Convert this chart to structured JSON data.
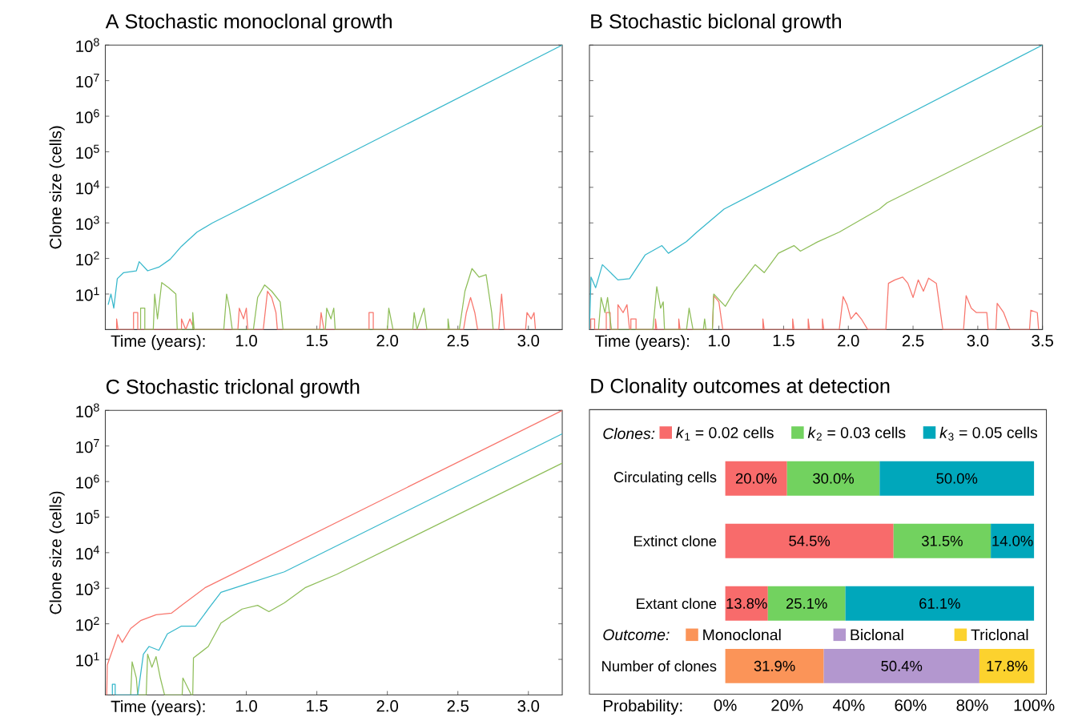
{
  "chart_data": [
    {
      "type": "line",
      "title": "A Stochastic monoclonal growth",
      "xlabel": "Time (years):",
      "ylabel": "Clone size (cells)",
      "log": "y",
      "xlim": [
        0,
        3.24
      ],
      "xticks": [
        {
          "value": 1,
          "label": "1.0"
        },
        {
          "value": 1.5,
          "label": "1.5"
        },
        {
          "value": 2,
          "label": "2.0"
        },
        {
          "value": 2.5,
          "label": "2.5"
        },
        {
          "value": 3,
          "label": "3.0"
        }
      ],
      "ylim": [
        1,
        100000000
      ],
      "yticks": [
        {
          "value": 10,
          "label": "10$^{1}$"
        },
        {
          "value": 100,
          "label": "10$^{2}$"
        },
        {
          "value": 1000,
          "label": "10$^{3}$"
        },
        {
          "value": 10000,
          "label": "10$^{4}$"
        },
        {
          "value": 100000,
          "label": "10$^{5}$"
        },
        {
          "value": 1000000,
          "label": "10$^{6}$"
        },
        {
          "value": 10000000,
          "label": "10$^{7}$"
        },
        {
          "value": 100000000,
          "label": "10$^{8}$"
        }
      ],
      "series": [
        {
          "color": "#f8766d",
          "x": [
            0.08,
            0.08,
            0.09,
            0.2,
            0.2,
            0.23,
            0.23,
            0.54,
            0.54,
            0.57,
            0.6,
            0.63,
            0.94,
            0.95,
            0.98,
            1.0,
            1.01,
            1.12,
            1.15,
            1.18,
            1.21,
            1.22,
            1.52,
            1.53,
            1.55,
            1.87,
            1.87,
            1.9,
            1.9,
            2.54,
            2.56,
            2.59,
            2.62,
            2.64,
            2.79,
            2.81,
            2.83,
            2.98,
            2.99,
            3.02,
            3.04,
            3.05
          ],
          "values": [
            1,
            2,
            1,
            1,
            3,
            3,
            1,
            1,
            2,
            1,
            2,
            1,
            1,
            4,
            2,
            4,
            1,
            1,
            12,
            8,
            3,
            1,
            1,
            3,
            1,
            1,
            3,
            3,
            1,
            1,
            3,
            8,
            3,
            1,
            1,
            10,
            1,
            1,
            3,
            2,
            3,
            1
          ]
        },
        {
          "color": "#8fbe5a",
          "x": [
            0.25,
            0.25,
            0.28,
            0.28,
            0.34,
            0.35,
            0.37,
            0.4,
            0.45,
            0.5,
            0.51,
            0.62,
            0.62,
            0.63,
            0.84,
            0.86,
            0.88,
            0.9,
            1.05,
            1.08,
            1.13,
            1.18,
            1.24,
            1.26,
            1.56,
            1.57,
            1.6,
            1.62,
            1.63,
            2.0,
            2.01,
            2.04,
            2.18,
            2.19,
            2.21,
            2.26,
            2.28,
            2.43,
            2.43,
            2.44,
            2.51,
            2.55,
            2.6,
            2.65,
            2.7,
            2.74,
            2.75
          ],
          "values": [
            1,
            4,
            4,
            1,
            1,
            10,
            2,
            21,
            15,
            10,
            1,
            1,
            3,
            1,
            1,
            10,
            4,
            1,
            1,
            8,
            18,
            12,
            6,
            1,
            1,
            4,
            2,
            4,
            1,
            1,
            4,
            1,
            1,
            3,
            1,
            4,
            1,
            1,
            2,
            1,
            1,
            12,
            52,
            30,
            35,
            3,
            1
          ]
        },
        {
          "color": "#38b8cc",
          "x": [
            0.02,
            0.04,
            0.06,
            0.085,
            0.13,
            0.22,
            0.24,
            0.3,
            0.38,
            0.46,
            0.54,
            0.65,
            0.76,
            0.87,
            3.24
          ],
          "values": [
            5,
            10,
            4,
            27,
            40,
            45,
            81,
            45,
            57,
            95,
            220,
            550,
            1000,
            1660,
            100000000
          ]
        }
      ]
    },
    {
      "type": "line",
      "title": "B Stochastic biclonal growth",
      "xlabel": "Time (years):",
      "log": "y",
      "tick_labels": "x",
      "xlim": [
        0,
        3.5
      ],
      "xticks": [
        {
          "value": 1,
          "label": "1.0"
        },
        {
          "value": 1.5,
          "label": "1.5"
        },
        {
          "value": 2,
          "label": "2.0"
        },
        {
          "value": 2.5,
          "label": "2.5"
        },
        {
          "value": 3,
          "label": "3.0"
        },
        {
          "value": 3.5,
          "label": "3.5"
        }
      ],
      "ylim": [
        1,
        100000000
      ],
      "yticks": [
        {
          "value": 10,
          "label": null
        },
        {
          "value": 100,
          "label": null
        },
        {
          "value": 1000,
          "label": null
        },
        {
          "value": 10000,
          "label": null
        },
        {
          "value": 100000,
          "label": null
        },
        {
          "value": 1000000,
          "label": null
        },
        {
          "value": 10000000,
          "label": null
        },
        {
          "value": 100000000,
          "label": null
        }
      ],
      "series": [
        {
          "color": "#f8766d",
          "x": [
            0.01,
            0.01,
            0.04,
            0.04,
            0.13,
            0.13,
            0.16,
            0.16,
            0.22,
            0.22,
            0.26,
            0.29,
            0.31,
            0.32,
            0.32,
            0.36,
            0.36,
            0.51,
            0.51,
            0.52,
            0.69,
            0.69,
            0.7,
            0.95,
            0.96,
            1.0,
            1.03,
            1.34,
            1.34,
            1.35,
            1.57,
            1.57,
            1.58,
            1.69,
            1.69,
            1.7,
            1.8,
            1.8,
            1.81,
            1.93,
            1.96,
            1.99,
            2.02,
            2.06,
            2.1,
            2.15,
            2.29,
            2.31,
            2.36,
            2.42,
            2.46,
            2.5,
            2.54,
            2.58,
            2.62,
            2.68,
            2.73,
            2.89,
            2.91,
            2.95,
            2.99,
            3.07,
            3.08,
            3.14,
            3.15,
            3.2,
            3.25,
            3.4,
            3.41,
            3.46,
            3.47
          ],
          "values": [
            1,
            2,
            2,
            1,
            1,
            3,
            3,
            1,
            1,
            5,
            3,
            5,
            1,
            1,
            2,
            2,
            1,
            1,
            2,
            1,
            1,
            2,
            1,
            1,
            9,
            6,
            1,
            1,
            2,
            1,
            1,
            2,
            1,
            1,
            2,
            1,
            1,
            2,
            1,
            1,
            8.5,
            5,
            2,
            3,
            2,
            1,
            1,
            20,
            25,
            30,
            20,
            8,
            25,
            12,
            28,
            20,
            1,
            1,
            9,
            4,
            3,
            3,
            1,
            1,
            5.5,
            3,
            1,
            1,
            3.5,
            3,
            1
          ]
        },
        {
          "color": "#8fbe5a",
          "x": [
            0.07,
            0.09,
            0.12,
            0.14,
            0.17,
            0.49,
            0.52,
            0.55,
            0.57,
            0.58,
            0.75,
            0.77,
            0.8,
            0.88,
            0.89,
            0.9,
            0.95,
            0.96,
            1.05,
            1.12,
            1.19,
            1.28,
            1.35,
            1.46,
            1.58,
            1.63,
            1.76,
            1.93,
            2.24,
            2.3,
            3.5
          ],
          "values": [
            1,
            8,
            3,
            8,
            1,
            1,
            16,
            4,
            6,
            1,
            1,
            4,
            1,
            1,
            2,
            1,
            1,
            10,
            4.5,
            12,
            25,
            67,
            40,
            140,
            230,
            160,
            290,
            550,
            2450,
            3700,
            550000
          ]
        },
        {
          "color": "#38b8cc",
          "x": [
            0,
            0.012,
            0.048,
            0.1,
            0.22,
            0.31,
            0.43,
            0.56,
            0.61,
            0.75,
            0.83,
            1.04,
            3.5
          ],
          "values": [
            1,
            30,
            15,
            67,
            25,
            27,
            125,
            230,
            140,
            300,
            550,
            2450,
            100000000
          ]
        }
      ]
    },
    {
      "type": "line",
      "title": "C Stochastic triclonal growth",
      "xlabel": "Time (years):",
      "ylabel": "Clone size (cells)",
      "log": "y",
      "xlim": [
        0,
        3.24
      ],
      "xticks": [
        {
          "value": 1,
          "label": "1.0"
        },
        {
          "value": 1.5,
          "label": "1.5"
        },
        {
          "value": 2,
          "label": "2.0"
        },
        {
          "value": 2.5,
          "label": "2.5"
        },
        {
          "value": 3,
          "label": "3.0"
        }
      ],
      "ylim": [
        1,
        100000000
      ],
      "yticks": [
        {
          "value": 10,
          "label": "10$^{1}$"
        },
        {
          "value": 100,
          "label": "10$^{2}$"
        },
        {
          "value": 1000,
          "label": "10$^{3}$"
        },
        {
          "value": 10000,
          "label": "10$^{4}$"
        },
        {
          "value": 100000,
          "label": "10$^{5}$"
        },
        {
          "value": 1000000,
          "label": "10$^{6}$"
        },
        {
          "value": 10000000,
          "label": "10$^{7}$"
        },
        {
          "value": 100000000,
          "label": "10$^{8}$"
        }
      ],
      "series": [
        {
          "color": "#8fbe5a",
          "x": [
            0.18,
            0.19,
            0.22,
            0.23,
            0.29,
            0.3,
            0.33,
            0.36,
            0.39,
            0.42,
            0.545,
            0.55,
            0.61,
            0.62,
            0.625,
            0.73,
            0.82,
            0.97,
            1.08,
            1.16,
            1.27,
            1.42,
            1.64,
            3.24
          ],
          "values": [
            1,
            8.5,
            3,
            1,
            1,
            14,
            6,
            12,
            3,
            1,
            1,
            3,
            1,
            1,
            11,
            23,
            105,
            260,
            330,
            220,
            390,
            1050,
            2450,
            3300000
          ]
        },
        {
          "color": "#38b8cc",
          "x": [
            0.05,
            0.05,
            0.07,
            0.07,
            0.23,
            0.27,
            0.31,
            0.38,
            0.44,
            0.54,
            0.64,
            0.73,
            0.82,
            1.0,
            1.27,
            3.24
          ],
          "values": [
            1,
            2,
            2,
            1,
            1,
            14,
            23,
            18,
            52,
            86,
            86,
            260,
            770,
            1300,
            2900,
            22000000
          ]
        },
        {
          "color": "#f8766d",
          "x": [
            0.01,
            0.014,
            0.09,
            0.12,
            0.18,
            0.25,
            0.36,
            0.47,
            0.54,
            0.71,
            3.24
          ],
          "values": [
            1,
            7,
            50,
            30,
            74,
            123,
            180,
            200,
            330,
            1050,
            100000000
          ]
        }
      ]
    },
    {
      "type": "bar",
      "orientation": "horizontal",
      "stacked": true,
      "title": "D Clonality outcomes at detection",
      "xlabel": "Probability:",
      "categories": [
        "Circulating cells",
        "Extinct clone",
        "Extant clone",
        "Number of clones"
      ],
      "xlim": [
        -44,
        104
      ],
      "xticks": [
        {
          "value": 0,
          "label": "0%"
        },
        {
          "value": 20,
          "label": "20%"
        },
        {
          "value": 40,
          "label": "40%"
        },
        {
          "value": 60,
          "label": "60%"
        },
        {
          "value": 80,
          "label": "80%"
        },
        {
          "value": 100,
          "label": "100%"
        }
      ],
      "legend": "top",
      "legend_title": "Clones:",
      "annotations": [
        "Outcome:"
      ],
      "series": [
        {
          "name": "*k*$_{1}$ = 0.02 cells",
          "color": "#f86b6b",
          "values": [
            20.0,
            54.5,
            13.8,
            null
          ],
          "value_labels": [
            "20.0%",
            "54.5%",
            "13.8%",
            null
          ]
        },
        {
          "name": "*k*$_{2}$ = 0.03 cells",
          "color": "#72d25f",
          "values": [
            30.0,
            31.5,
            25.1,
            null
          ],
          "value_labels": [
            "30.0%",
            "31.5%",
            "25.1%",
            null
          ]
        },
        {
          "name": "*k*$_{3}$ = 0.05 cells",
          "color": "#00a7bb",
          "values": [
            50.0,
            14.0,
            61.1,
            null
          ],
          "value_labels": [
            "50.0%",
            "14.0%",
            "61.1%",
            null
          ]
        },
        {
          "name": "Monoclonal",
          "color": "#fb9458",
          "values": [
            null,
            null,
            null,
            31.9
          ],
          "value_labels": [
            null,
            null,
            null,
            "31.9%"
          ]
        },
        {
          "name": "Biclonal",
          "color": "#b397cf",
          "values": [
            null,
            null,
            null,
            50.4
          ],
          "value_labels": [
            null,
            null,
            null,
            "50.4%"
          ]
        },
        {
          "name": "Triclonal",
          "color": "#fcd22e",
          "values": [
            null,
            null,
            null,
            17.8
          ],
          "value_labels": [
            null,
            null,
            null,
            "17.8%"
          ]
        }
      ]
    }
  ]
}
